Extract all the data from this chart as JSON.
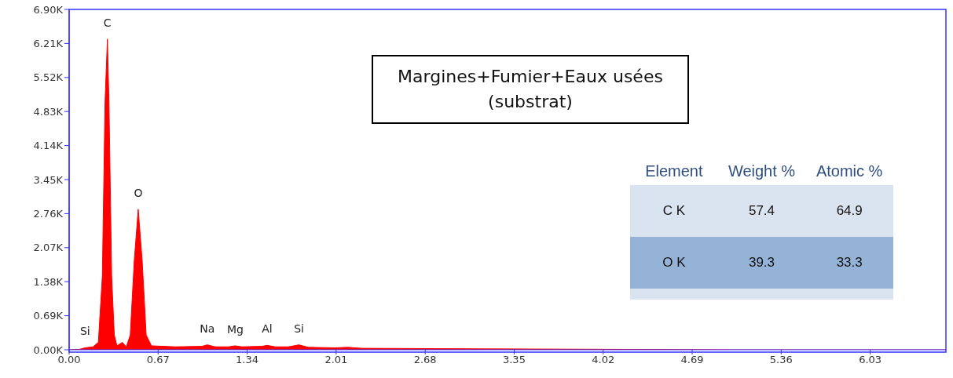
{
  "chart_data": {
    "type": "area",
    "title": "Margines+Fumier+Eaux usées (substrat)",
    "color": "#ff0000",
    "x": [
      0,
      0.08,
      0.12,
      0.18,
      0.22,
      0.25,
      0.27,
      0.288,
      0.3,
      0.32,
      0.34,
      0.36,
      0.4,
      0.43,
      0.46,
      0.49,
      0.52,
      0.55,
      0.58,
      0.62,
      0.8,
      1.0,
      1.04,
      1.1,
      1.2,
      1.25,
      1.3,
      1.45,
      1.49,
      1.55,
      1.65,
      1.73,
      1.8,
      2.0,
      2.1,
      2.2,
      3.0,
      4.0,
      5.0,
      6.6
    ],
    "values": [
      0,
      10,
      40,
      60,
      150,
      1500,
      5000,
      6300,
      5000,
      1500,
      300,
      80,
      150,
      60,
      300,
      1800,
      2850,
      1800,
      300,
      80,
      60,
      70,
      100,
      60,
      60,
      80,
      60,
      70,
      90,
      60,
      60,
      100,
      50,
      40,
      50,
      30,
      20,
      10,
      0,
      0
    ],
    "xlim": [
      0,
      6.6
    ],
    "xticks": [
      {
        "value": 0,
        "label": "0.00"
      },
      0.67,
      1.34,
      2.01,
      2.68,
      3.35,
      4.02,
      4.69,
      5.36,
      6.03
    ],
    "ylim": [
      0,
      6900
    ],
    "yticks": [
      {
        "value": 0,
        "label": "0.00K"
      },
      {
        "value": 690,
        "label": "0.69K"
      },
      {
        "value": 1380,
        "label": "1.38K"
      },
      {
        "value": 2070,
        "label": "2.07K"
      },
      {
        "value": 2760,
        "label": "2.76K"
      },
      {
        "value": 3450,
        "label": "3.45K"
      },
      {
        "value": 4140,
        "label": "4.14K"
      },
      {
        "value": 4830,
        "label": "4.83K"
      },
      {
        "value": 5520,
        "label": "5.52K"
      },
      {
        "value": 6210,
        "label": "6.21K"
      },
      {
        "value": 6900,
        "label": "6.90K"
      }
    ],
    "annotations": [
      {
        "text": "Si",
        "x": 0.12,
        "y": 40
      },
      {
        "text": "C",
        "x": 0.288,
        "y": 6300
      },
      {
        "text": "O",
        "x": 0.52,
        "y": 2850
      },
      {
        "text": "Na",
        "x": 1.04,
        "y": 100
      },
      {
        "text": "Mg",
        "x": 1.25,
        "y": 80
      },
      {
        "text": "Al",
        "x": 1.49,
        "y": 90
      },
      {
        "text": "Si",
        "x": 1.73,
        "y": 100
      },
      "Element",
      "Weight %",
      "Atomic %",
      "C K",
      "57.4",
      "64.9",
      "O K",
      "39.3",
      "33.3"
    ]
  }
}
